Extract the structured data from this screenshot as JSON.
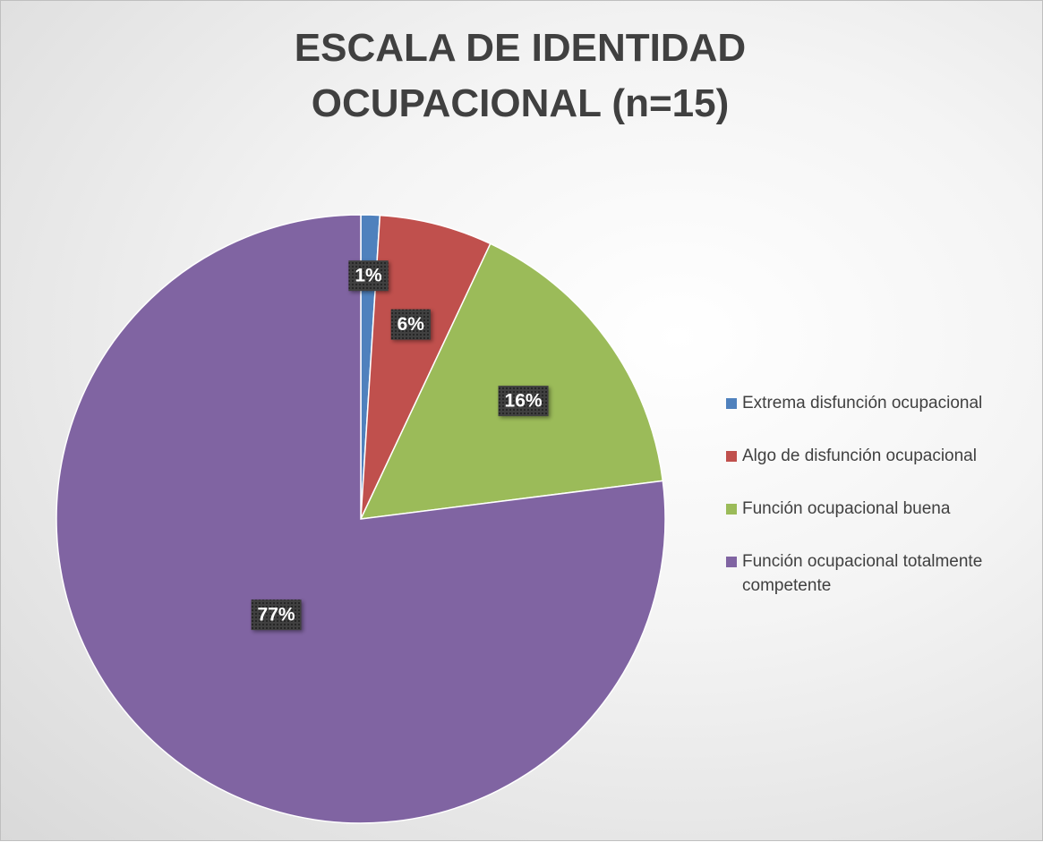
{
  "chart_data": {
    "type": "pie",
    "title": "ESCALA DE IDENTIDAD OCUPACIONAL (n=15)",
    "categories": [
      "Extrema disfunción ocupacional",
      "Algo de disfunción ocupacional",
      "Función ocupacional buena",
      "Función ocupacional totalmente competente"
    ],
    "values": [
      1,
      6,
      16,
      77
    ],
    "value_labels": [
      "1%",
      "6%",
      "16%",
      "77%"
    ],
    "colors": [
      "#4f81bd",
      "#c0504d",
      "#9bbb59",
      "#8064a2"
    ],
    "legend": "right"
  }
}
